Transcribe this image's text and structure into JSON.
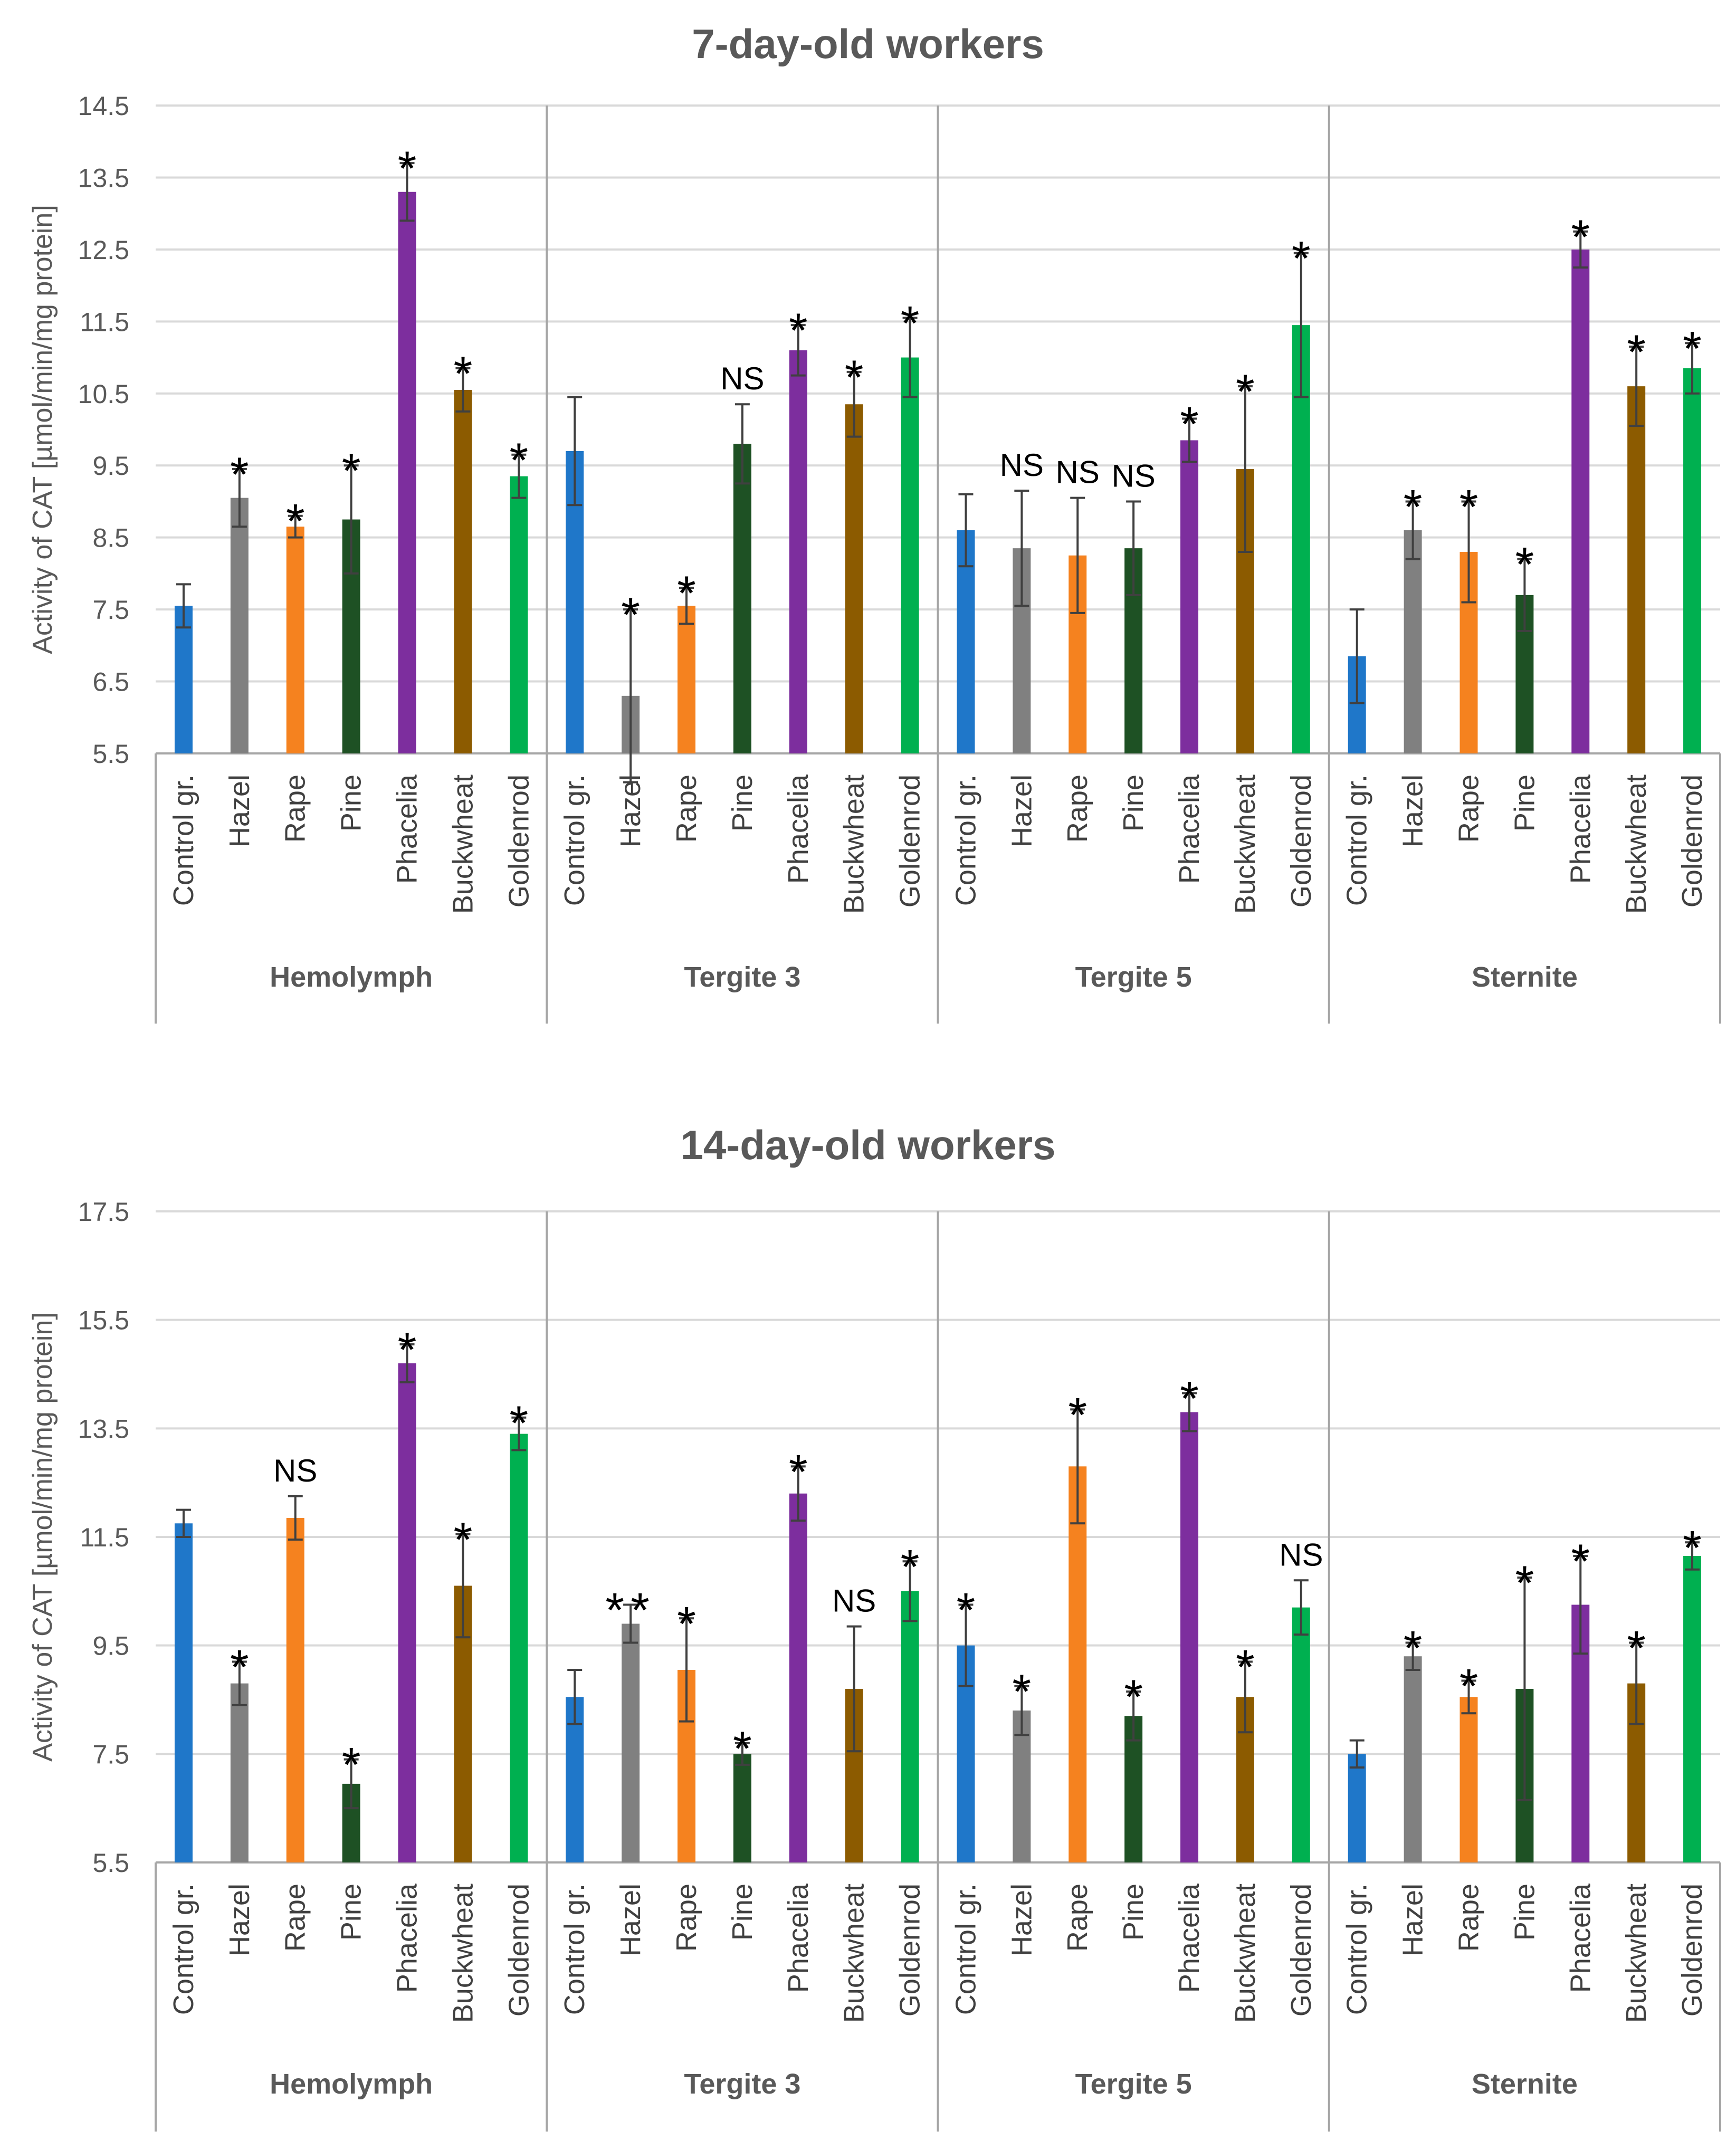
{
  "colors": {
    "Control gr.": "#1f77c9",
    "Hazel": "#808080",
    "Rape": "#f5821f",
    "Pine": "#1e5124",
    "Phacelia": "#7d2e9e",
    "Buckwheat": "#8c5b00",
    "Goldenrod": "#00b050",
    "grid": "#d9d9d9",
    "separator": "#a6a6a6",
    "errorbar": "#404040",
    "sig_blue": "#1f77c9"
  },
  "chart_data": [
    {
      "type": "bar",
      "title": "7-day-old workers",
      "ylabel": "Activity of CAT [µmol/min/mg protein]",
      "ylim": [
        5.5,
        14.5
      ],
      "yticks": [
        "5.5",
        "6.5",
        "7.5",
        "8.5",
        "9.5",
        "10.5",
        "11.5",
        "12.5",
        "13.5",
        "14.5"
      ],
      "grid": true,
      "groups": [
        {
          "name": "Hemolymph",
          "bars": [
            {
              "category": "Control gr.",
              "value": 7.55,
              "err": 0.3,
              "sig": ""
            },
            {
              "category": "Hazel",
              "value": 9.05,
              "err": 0.4,
              "sig": "*"
            },
            {
              "category": "Rape",
              "value": 8.65,
              "err": 0.15,
              "sig": "*"
            },
            {
              "category": "Pine",
              "value": 8.75,
              "err": 0.75,
              "sig": "*"
            },
            {
              "category": "Phacelia",
              "value": 13.3,
              "err": 0.4,
              "sig": "*"
            },
            {
              "category": "Buckwheat",
              "value": 10.55,
              "err": 0.3,
              "sig": "*"
            },
            {
              "category": "Goldenrod",
              "value": 9.35,
              "err": 0.3,
              "sig": "*"
            }
          ]
        },
        {
          "name": "Tergite 3",
          "bars": [
            {
              "category": "Control gr.",
              "value": 9.7,
              "err": 0.75,
              "sig": ""
            },
            {
              "category": "Hazel",
              "value": 6.3,
              "err": 1.2,
              "sig": "*"
            },
            {
              "category": "Rape",
              "value": 7.55,
              "err": 0.25,
              "sig": "*"
            },
            {
              "category": "Pine",
              "value": 9.8,
              "err": 0.55,
              "sig": "NS"
            },
            {
              "category": "Phacelia",
              "value": 11.1,
              "err": 0.35,
              "sig": "*"
            },
            {
              "category": "Buckwheat",
              "value": 10.35,
              "err": 0.45,
              "sig": "*"
            },
            {
              "category": "Goldenrod",
              "value": 11.0,
              "err": 0.55,
              "sig": "*"
            }
          ]
        },
        {
          "name": "Tergite 5",
          "bars": [
            {
              "category": "Control gr.",
              "value": 8.6,
              "err": 0.5,
              "sig": ""
            },
            {
              "category": "Hazel",
              "value": 8.35,
              "err": 0.8,
              "sig": "NS"
            },
            {
              "category": "Rape",
              "value": 8.25,
              "err": 0.8,
              "sig": "NS"
            },
            {
              "category": "Pine",
              "value": 8.35,
              "err": 0.65,
              "sig": "NS"
            },
            {
              "category": "Phacelia",
              "value": 9.85,
              "err": 0.3,
              "sig": "*"
            },
            {
              "category": "Buckwheat",
              "value": 9.45,
              "err": 1.15,
              "sig": "*"
            },
            {
              "category": "Goldenrod",
              "value": 11.45,
              "err": 1.0,
              "sig": "*"
            }
          ]
        },
        {
          "name": "Sternite",
          "bars": [
            {
              "category": "Control gr.",
              "value": 6.85,
              "err": 0.65,
              "sig": ""
            },
            {
              "category": "Hazel",
              "value": 8.6,
              "err": 0.4,
              "sig": "*"
            },
            {
              "category": "Rape",
              "value": 8.3,
              "err": 0.7,
              "sig": "*"
            },
            {
              "category": "Pine",
              "value": 7.7,
              "err": 0.5,
              "sig": "*"
            },
            {
              "category": "Phacelia",
              "value": 12.5,
              "err": 0.25,
              "sig": "*"
            },
            {
              "category": "Buckwheat",
              "value": 10.6,
              "err": 0.55,
              "sig": "*"
            },
            {
              "category": "Goldenrod",
              "value": 10.85,
              "err": 0.35,
              "sig": "*"
            }
          ]
        }
      ]
    },
    {
      "type": "bar",
      "title": "14-day-old workers",
      "ylabel": "Activity of CAT [µmol/min/mg protein]",
      "ylim": [
        5.5,
        17.5
      ],
      "yticks": [
        "5.5",
        "7.5",
        "9.5",
        "11.5",
        "13.5",
        "15.5",
        "17.5"
      ],
      "grid": true,
      "groups": [
        {
          "name": "Hemolymph",
          "bars": [
            {
              "category": "Control gr.",
              "value": 11.75,
              "err": 0.25,
              "sig": ""
            },
            {
              "category": "Hazel",
              "value": 8.8,
              "err": 0.4,
              "sig": "*"
            },
            {
              "category": "Rape",
              "value": 11.85,
              "err": 0.4,
              "sig": "NS"
            },
            {
              "category": "Pine",
              "value": 6.95,
              "err": 0.45,
              "sig": "*"
            },
            {
              "category": "Phacelia",
              "value": 14.7,
              "err": 0.35,
              "sig": "*"
            },
            {
              "category": "Buckwheat",
              "value": 10.6,
              "err": 0.95,
              "sig": "*"
            },
            {
              "category": "Goldenrod",
              "value": 13.4,
              "err": 0.3,
              "sig": "*"
            }
          ]
        },
        {
          "name": "Tergite 3",
          "bars": [
            {
              "category": "Control gr.",
              "value": 8.55,
              "err": 0.5,
              "sig": ""
            },
            {
              "category": "Hazel",
              "value": 9.9,
              "err": 0.35,
              "sig": "**",
              "sig_color": "blue"
            },
            {
              "category": "Rape",
              "value": 9.05,
              "err": 0.95,
              "sig": "*"
            },
            {
              "category": "Pine",
              "value": 7.5,
              "err": 0.2,
              "sig": "*"
            },
            {
              "category": "Phacelia",
              "value": 12.3,
              "err": 0.5,
              "sig": "*"
            },
            {
              "category": "Buckwheat",
              "value": 8.7,
              "err": 1.15,
              "sig": "NS"
            },
            {
              "category": "Goldenrod",
              "value": 10.5,
              "err": 0.55,
              "sig": "*"
            }
          ]
        },
        {
          "name": "Tergite 5",
          "bars": [
            {
              "category": "Control gr.",
              "value": 9.5,
              "err": 0.75,
              "sig": "*"
            },
            {
              "category": "Hazel",
              "value": 8.3,
              "err": 0.45,
              "sig": "*"
            },
            {
              "category": "Rape",
              "value": 12.8,
              "err": 1.05,
              "sig": "*"
            },
            {
              "category": "Pine",
              "value": 8.2,
              "err": 0.45,
              "sig": "*"
            },
            {
              "category": "Phacelia",
              "value": 13.8,
              "err": 0.35,
              "sig": "*"
            },
            {
              "category": "Buckwheat",
              "value": 8.55,
              "err": 0.65,
              "sig": "*"
            },
            {
              "category": "Goldenrod",
              "value": 10.2,
              "err": 0.5,
              "sig": "NS"
            }
          ]
        },
        {
          "name": "Sternite",
          "bars": [
            {
              "category": "Control gr.",
              "value": 7.5,
              "err": 0.25,
              "sig": ""
            },
            {
              "category": "Hazel",
              "value": 9.3,
              "err": 0.25,
              "sig": "*"
            },
            {
              "category": "Rape",
              "value": 8.55,
              "err": 0.3,
              "sig": "*"
            },
            {
              "category": "Pine",
              "value": 8.7,
              "err": 2.05,
              "sig": "*"
            },
            {
              "category": "Phacelia",
              "value": 10.25,
              "err": 0.9,
              "sig": "*"
            },
            {
              "category": "Buckwheat",
              "value": 8.8,
              "err": 0.75,
              "sig": "*"
            },
            {
              "category": "Goldenrod",
              "value": 11.15,
              "err": 0.25,
              "sig": "*"
            }
          ]
        }
      ]
    }
  ]
}
